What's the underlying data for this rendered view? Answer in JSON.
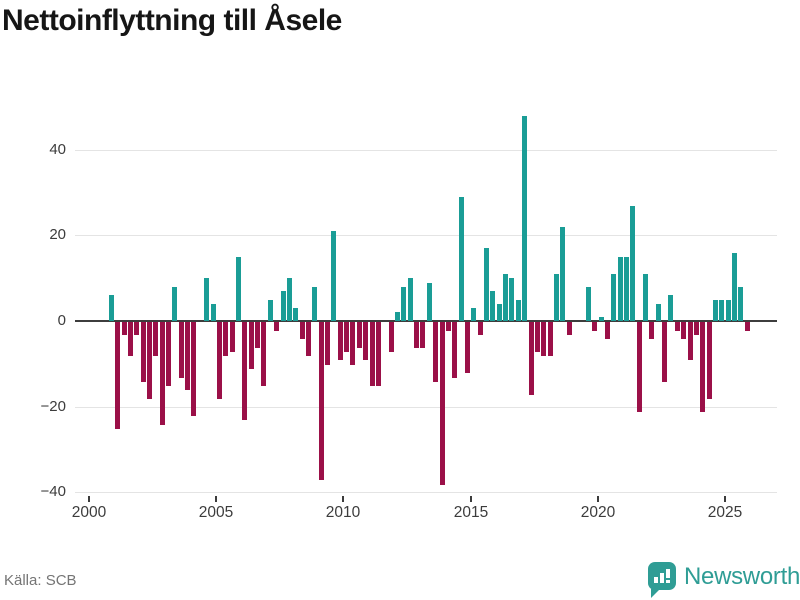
{
  "title": "Nettoinflyttning till Åsele",
  "footer": {
    "source": "Källa: SCB",
    "brand": "Newsworthy"
  },
  "chart_data": {
    "type": "bar",
    "title": "Nettoinflyttning till Åsele",
    "x_unit": "quarter",
    "start_year": 2000,
    "categories": [
      "2000 Q1",
      "2000 Q2",
      "2000 Q3",
      "2000 Q4",
      "2001 Q1",
      "2001 Q2",
      "2001 Q3",
      "2001 Q4",
      "2002 Q1",
      "2002 Q2",
      "2002 Q3",
      "2002 Q4",
      "2003 Q1",
      "2003 Q2",
      "2003 Q3",
      "2003 Q4",
      "2004 Q1",
      "2004 Q2",
      "2004 Q3",
      "2004 Q4",
      "2005 Q1",
      "2005 Q2",
      "2005 Q3",
      "2005 Q4",
      "2006 Q1",
      "2006 Q2",
      "2006 Q3",
      "2006 Q4",
      "2007 Q1",
      "2007 Q2",
      "2007 Q3",
      "2007 Q4",
      "2008 Q1",
      "2008 Q2",
      "2008 Q3",
      "2008 Q4",
      "2009 Q1",
      "2009 Q2",
      "2009 Q3",
      "2009 Q4",
      "2010 Q1",
      "2010 Q2",
      "2010 Q3",
      "2010 Q4",
      "2011 Q1",
      "2011 Q2",
      "2011 Q3",
      "2011 Q4",
      "2012 Q1",
      "2012 Q2",
      "2012 Q3",
      "2012 Q4",
      "2013 Q1",
      "2013 Q2",
      "2013 Q3",
      "2013 Q4",
      "2014 Q1",
      "2014 Q2",
      "2014 Q3",
      "2014 Q4",
      "2015 Q1",
      "2015 Q2",
      "2015 Q3",
      "2015 Q4",
      "2016 Q1",
      "2016 Q2",
      "2016 Q3",
      "2016 Q4",
      "2017 Q1",
      "2017 Q2",
      "2017 Q3",
      "2017 Q4",
      "2018 Q1",
      "2018 Q2",
      "2018 Q3",
      "2018 Q4",
      "2019 Q1",
      "2019 Q2",
      "2019 Q3",
      "2019 Q4",
      "2020 Q1",
      "2020 Q2",
      "2020 Q3",
      "2020 Q4",
      "2021 Q1",
      "2021 Q2",
      "2021 Q3",
      "2021 Q4",
      "2022 Q1",
      "2022 Q2",
      "2022 Q3",
      "2022 Q4",
      "2023 Q1",
      "2023 Q2",
      "2023 Q3",
      "2023 Q4",
      "2024 Q1",
      "2024 Q2",
      "2024 Q3",
      "2024 Q4",
      "2025 Q1",
      "2025 Q2",
      "2025 Q3",
      "2025 Q4"
    ],
    "values": [
      0,
      0,
      0,
      6,
      -25,
      -3,
      -8,
      -3,
      -14,
      -18,
      -8,
      -24,
      -15,
      8,
      -13,
      -16,
      -22,
      0,
      10,
      4,
      -18,
      -8,
      -7,
      15,
      -23,
      -11,
      -6,
      -15,
      5,
      -2,
      7,
      10,
      3,
      -4,
      -8,
      8,
      -37,
      -10,
      21,
      -9,
      -7,
      -10,
      -6,
      -9,
      -15,
      -15,
      0,
      -7,
      2,
      8,
      10,
      -6,
      -6,
      9,
      -14,
      -38,
      -2,
      -13,
      29,
      -12,
      3,
      -3,
      17,
      7,
      4,
      11,
      10,
      5,
      48,
      -17,
      -7,
      -8,
      -8,
      11,
      22,
      -3,
      0,
      0,
      8,
      -2,
      1,
      -4,
      11,
      15,
      15,
      27,
      -21,
      11,
      -4,
      4,
      -14,
      6,
      -2,
      -4,
      -9,
      -3,
      -21,
      -18,
      5,
      5,
      5,
      16,
      8,
      -2
    ],
    "xlabel": "",
    "ylabel": "",
    "x_ticks": [
      "2000",
      "2005",
      "2010",
      "2015",
      "2020",
      "2025"
    ],
    "y_ticks": [
      "40",
      "20",
      "0",
      "−20",
      "−40"
    ],
    "y_tick_values": [
      40,
      20,
      0,
      -20,
      -40
    ],
    "ylim": [
      -42,
      50
    ],
    "grid": true,
    "legend": "none",
    "colors": {
      "positive": "#1a9d96",
      "negative": "#9b1048"
    }
  }
}
